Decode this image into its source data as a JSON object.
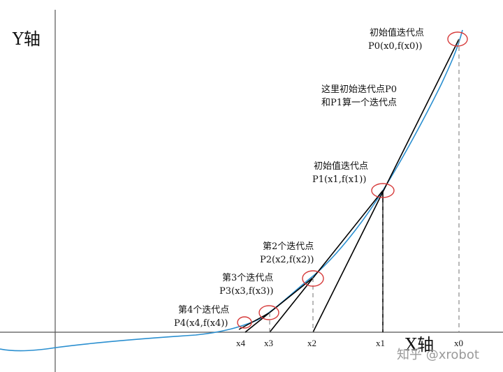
{
  "diagram": {
    "y_axis_label": "Y轴",
    "x_axis_label": "X轴",
    "x_ticks": [
      "x4",
      "x3",
      "x2",
      "x1",
      "x0"
    ],
    "annotations": {
      "p0_title": "初始值迭代点",
      "p0_coord": "P0(x0,f(x0))",
      "note_line1": "这里初始迭代点P0",
      "note_line2": "和P1算一个迭代点",
      "p1_title": "初始值迭代点",
      "p1_coord": "P1(x1,f(x1))",
      "p2_title": "第2个迭代点",
      "p2_coord": "P2(x2,f(x2))",
      "p3_title": "第3个迭代点",
      "p3_coord": "P3(x3,f(x3))",
      "p4_title": "第4个迭代点",
      "p4_coord": "P4(x4,f(x4))"
    },
    "watermark": "知乎 @xrobot",
    "colors": {
      "curve": "#2a8fd0",
      "lines": "#000000",
      "circles": "#d63a3a",
      "dashed": "#8a8a8a",
      "axes": "#555555"
    }
  }
}
